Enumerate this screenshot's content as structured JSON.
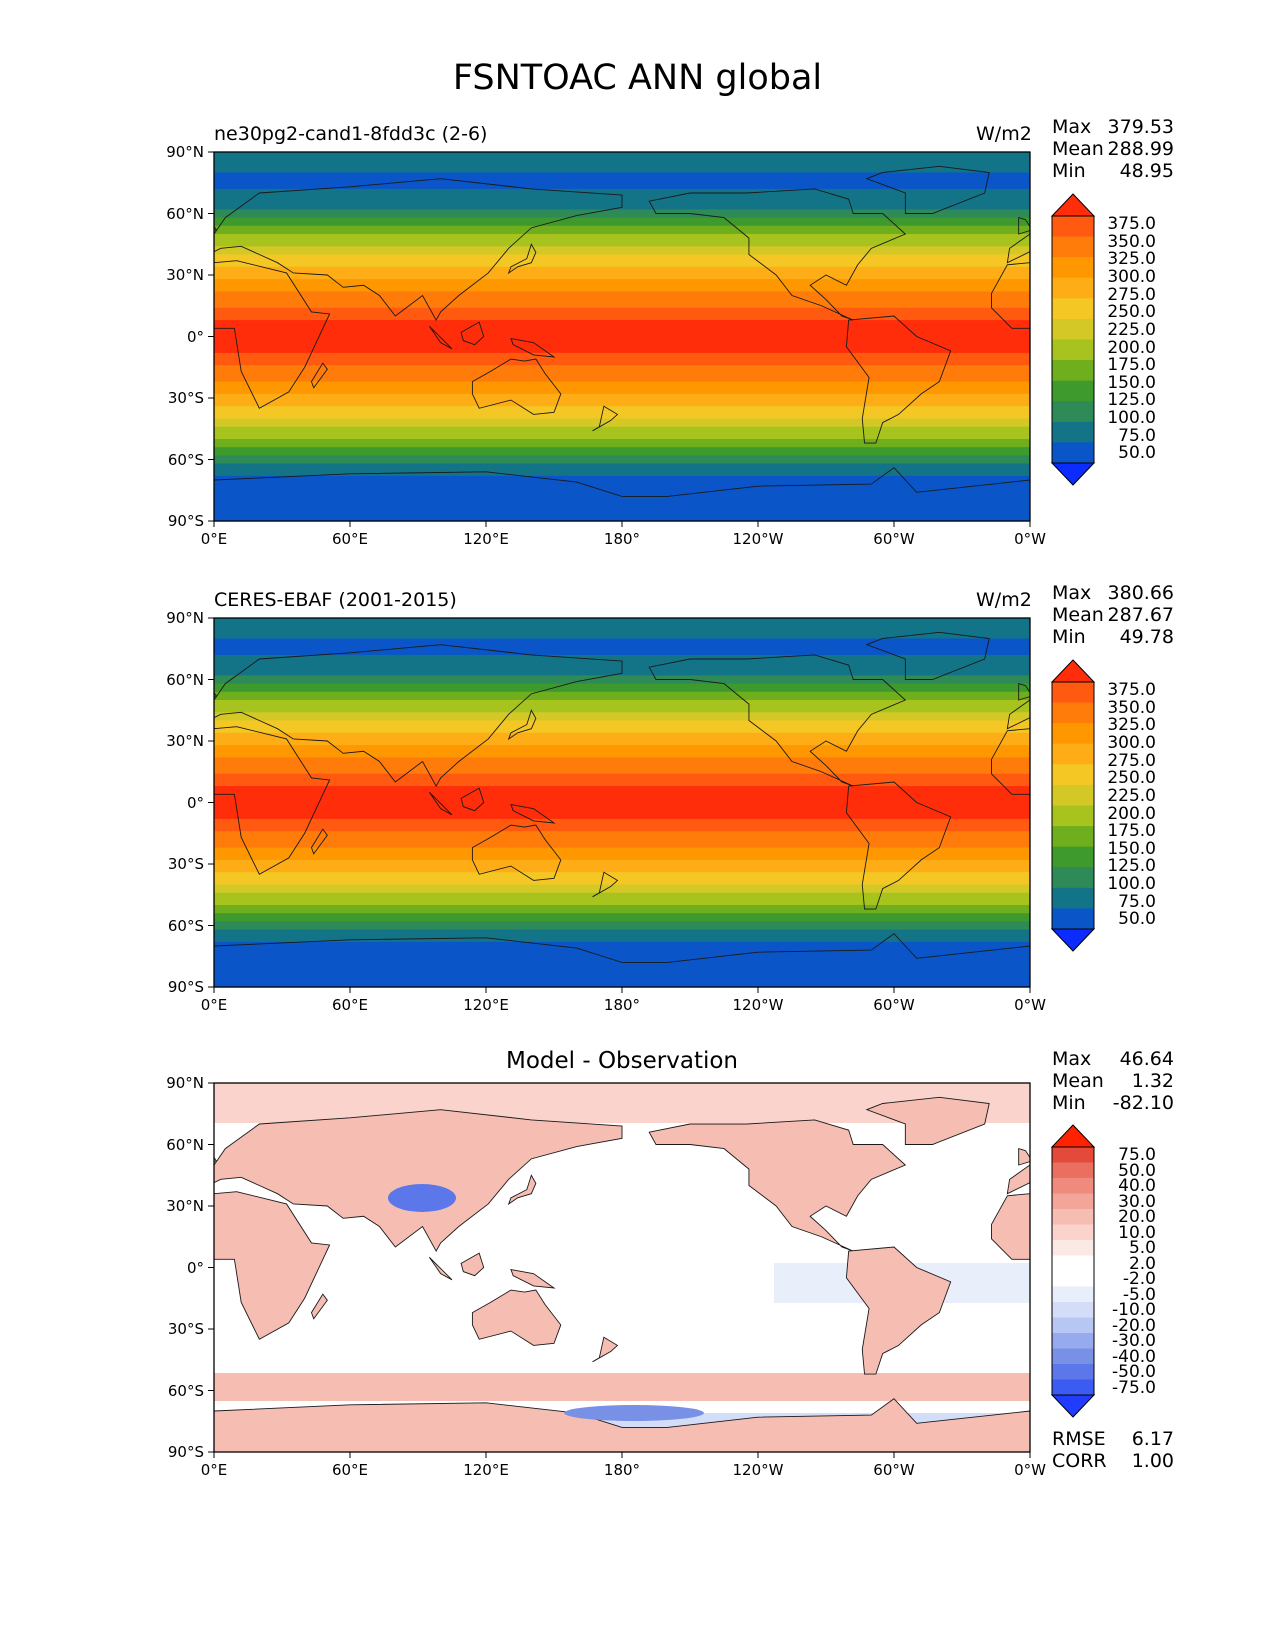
{
  "figure": {
    "title": "FSNTOAC ANN global"
  },
  "colors": {
    "sequential": [
      "#0b2bff",
      "#0a55c8",
      "#137488",
      "#2e8a56",
      "#3f9a2e",
      "#6fae1d",
      "#a7c31e",
      "#d4c826",
      "#f4c724",
      "#ffad16",
      "#ff9800",
      "#ff7c0b",
      "#ff5a10",
      "#ff2d0a"
    ],
    "diverging": [
      "#1f3cff",
      "#3c5bf2",
      "#5b77ea",
      "#7891e6",
      "#98aaee",
      "#b7c6f3",
      "#d4ddf8",
      "#e9eefb",
      "#ffffff",
      "#ffffff",
      "#fbe9e6",
      "#f9d3cc",
      "#f6bdb3",
      "#f2a598",
      "#ee8b7c",
      "#ea6f5e",
      "#e44a3a",
      "#ff2200"
    ]
  },
  "panels": [
    {
      "title": "ne30pg2-cand1-8fdd3c (2-6)",
      "units": "W/m2",
      "stats": {
        "max_label": "Max",
        "max": "379.53",
        "mean_label": "Mean",
        "mean": "288.99",
        "min_label": "Min",
        "min": "48.95"
      },
      "colorbar_ticks": [
        "375.0",
        "350.0",
        "325.0",
        "300.0",
        "275.0",
        "250.0",
        "225.0",
        "200.0",
        "175.0",
        "150.0",
        "125.0",
        "100.0",
        "75.0",
        "50.0"
      ]
    },
    {
      "title": "CERES-EBAF (2001-2015)",
      "units": "W/m2",
      "stats": {
        "max_label": "Max",
        "max": "380.66",
        "mean_label": "Mean",
        "mean": "287.67",
        "min_label": "Min",
        "min": "49.78"
      },
      "colorbar_ticks": [
        "375.0",
        "350.0",
        "325.0",
        "300.0",
        "275.0",
        "250.0",
        "225.0",
        "200.0",
        "175.0",
        "150.0",
        "125.0",
        "100.0",
        "75.0",
        "50.0"
      ]
    },
    {
      "title": "Model - Observation",
      "units": "",
      "stats": {
        "max_label": "Max",
        "max": "46.64",
        "mean_label": "Mean",
        "mean": "1.32",
        "min_label": "Min",
        "min": "-82.10"
      },
      "colorbar_ticks": [
        "75.0",
        "50.0",
        "40.0",
        "30.0",
        "20.0",
        "10.0",
        "5.0",
        "2.0",
        "-2.0",
        "-5.0",
        "-10.0",
        "-20.0",
        "-30.0",
        "-40.0",
        "-50.0",
        "-75.0"
      ],
      "extra": {
        "rmse_label": "RMSE",
        "rmse": "6.17",
        "corr_label": "CORR",
        "corr": "1.00"
      }
    }
  ],
  "axes": {
    "lat_ticks": [
      "90°N",
      "60°N",
      "30°N",
      "0°",
      "30°S",
      "60°S",
      "90°S"
    ],
    "lon_ticks": [
      "0°E",
      "60°E",
      "120°E",
      "180°",
      "120°W",
      "60°W",
      "0°W"
    ]
  }
}
